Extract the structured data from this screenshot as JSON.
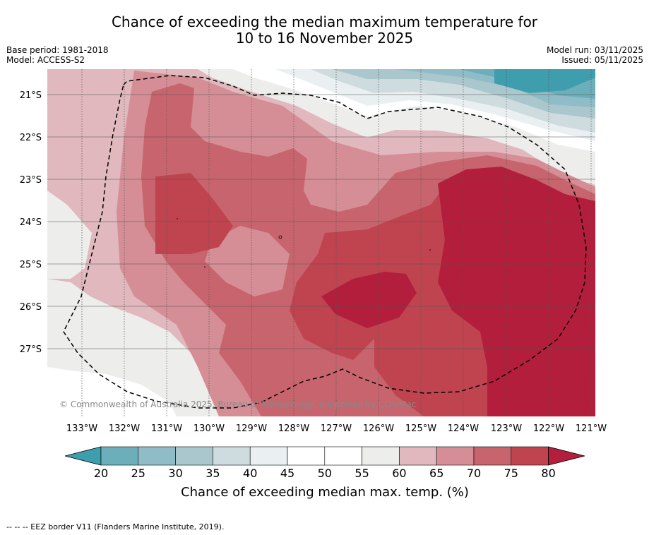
{
  "title": {
    "line1": "Chance of exceeding the median maximum temperature for",
    "line2": "10 to 16 November 2025"
  },
  "meta": {
    "base_period": "Base period: 1981-2018",
    "model": "Model: ACCESS-S2",
    "model_run": "Model run: 03/11/2025",
    "issued": "Issued: 05/11/2025"
  },
  "map": {
    "lat_labels": [
      "21°S",
      "22°S",
      "23°S",
      "24°S",
      "25°S",
      "26°S",
      "27°S"
    ],
    "lon_labels": [
      "133°W",
      "132°W",
      "131°W",
      "130°W",
      "129°W",
      "128°W",
      "127°W",
      "126°W",
      "125°W",
      "124°W",
      "123°W",
      "122°W",
      "121°W"
    ],
    "copyright": "© Commonwealth of Australia 2025, Bureau of Meteorology, supported by COSPPac"
  },
  "colorbar": {
    "ticks": [
      "20",
      "25",
      "30",
      "35",
      "40",
      "45",
      "50",
      "55",
      "60",
      "65",
      "70",
      "75",
      "80"
    ],
    "colors": [
      "#3f9eae",
      "#6caeba",
      "#8fbcc6",
      "#a9c7cd",
      "#cfdcdf",
      "#eaf0f2",
      "#ffffff",
      "#ffffff",
      "#ededeb",
      "#e0b8bd",
      "#d58e95",
      "#c8646d",
      "#bf4450",
      "#b21e3b"
    ],
    "label": "Chance of exceeding median max. temp. (%)"
  },
  "footer": "--  --  -- EEZ border V11 (Flanders Marine Institute, 2019)."
}
